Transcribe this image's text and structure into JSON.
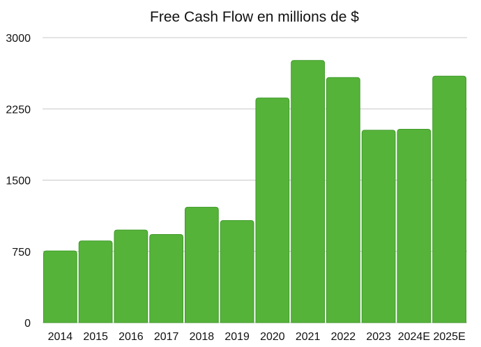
{
  "chart_data": {
    "type": "bar",
    "title": "Free Cash Flow en millions de $",
    "xlabel": "",
    "ylabel": "",
    "categories": [
      "2014",
      "2015",
      "2016",
      "2017",
      "2018",
      "2019",
      "2020",
      "2021",
      "2022",
      "2023",
      "2024E",
      "2025E"
    ],
    "values": [
      755,
      860,
      975,
      928,
      1215,
      1075,
      2365,
      2760,
      2580,
      2025,
      2035,
      2595
    ],
    "ylim": [
      0,
      3000
    ],
    "yticks": [
      0,
      750,
      1500,
      2250,
      3000
    ],
    "ytick_labels": [
      "0",
      "750",
      "1500",
      "2250",
      "3000"
    ],
    "grid": true,
    "legend": "none",
    "colors": {
      "bar_fill": "#56b33a",
      "bar_stroke": "#3f9a28",
      "grid": "#c7c7c7",
      "text": "#111111"
    }
  }
}
